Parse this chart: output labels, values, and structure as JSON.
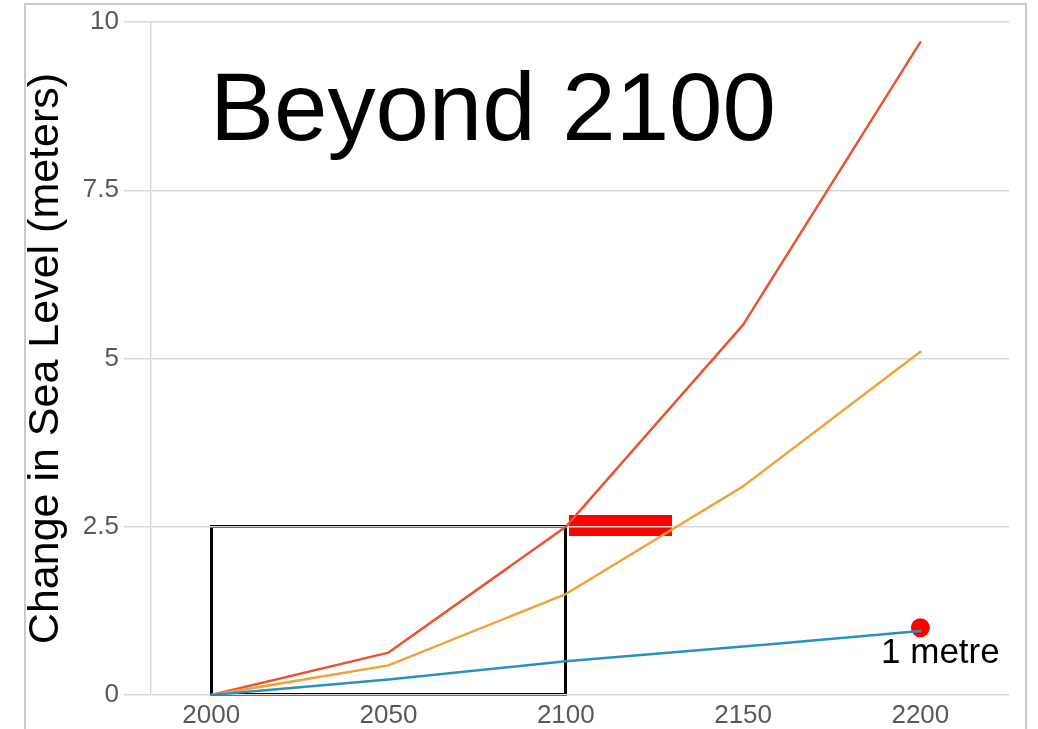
{
  "chart_data": {
    "type": "line",
    "title": "Beyond 2100",
    "ylabel": "Change in Sea Level (meters)",
    "x": [
      2000,
      2050,
      2100,
      2150,
      2200
    ],
    "series": [
      {
        "type": "scatter",
        "color": "#ff0000",
        "x": [
          2200
        ],
        "values": [
          1
        ],
        "marker": "circle"
      },
      {
        "color": "#e9532f",
        "values": [
          0,
          0.63,
          2.5,
          5.5,
          9.7
        ]
      },
      {
        "color": "#f0a33a",
        "values": [
          0,
          0.44,
          1.5,
          3.1,
          5.1
        ]
      },
      {
        "color": "#2b8fc4",
        "values": [
          0,
          0.23,
          0.5,
          0.72,
          0.95
        ]
      }
    ],
    "xlim": [
      1983,
      2225
    ],
    "xticks": [
      2000,
      2050,
      2100,
      2150,
      2200
    ],
    "ylim": [
      0,
      10
    ],
    "yticks": [
      0,
      2.5,
      5,
      7.5,
      10
    ],
    "grid": "y",
    "marker": "none",
    "line_style": "solid",
    "annotations": [
      {
        "text": "1 metre",
        "x": 2200,
        "y": 1
      }
    ]
  }
}
